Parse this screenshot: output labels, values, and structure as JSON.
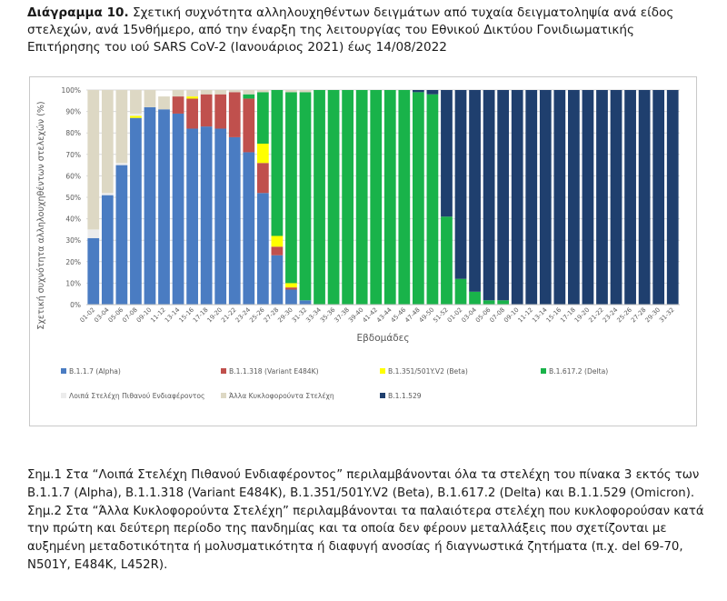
{
  "caption": {
    "label": "Διάγραμμα 10.",
    "text": " Σχετική συχνότητα αλληλουχηθέντων δειγμάτων από τυχαία δειγματοληψία ανά είδος στελεχών, ανά 15νθήμερο, από την έναρξη της λειτουργίας του Εθνικού Δικτύου Γονιδιωματικής Επιτήρησης του ιού SARS CoV-2 (Ιανουάριος 2021) έως 14/08/2022"
  },
  "notes": {
    "note1": "Σημ.1 Στα “Λοιπά Στελέχη Πιθανού Ενδιαφέροντος” περιλαμβάνονται όλα τα στελέχη του πίνακα 3 εκτός των Β.1.1.7 (Alpha), B.1.1.318  (Variant E484K), B.1.351/501Y.V2 (Beta), B.1.617.2 (Delta) και B.1.1.529 (Omicron).",
    "note2": "Σημ.2 Στα “Άλλα Κυκλοφορούντα Στελέχη” περιλαμβάνονται τα παλαιότερα στελέχη που κυκλοφορούσαν κατά την πρώτη και δεύτερη περίοδο της πανδημίας και τα οποία δεν φέρουν μεταλλάξεις που σχετίζονται με αυξημένη μεταδοτικότητα ή μολυσματικότητα ή διαφυγή ανοσίας ή διαγνωστικά ζητήματα (π.χ. del 69-70, N501Y, E484K, L452R)."
  },
  "colors": {
    "alpha": "#4a7cc2",
    "e484k": "#c0504d",
    "beta": "#ffff00",
    "delta": "#19b34a",
    "lpe": "#ececec",
    "other": "#ddd8c4",
    "omicron": "#1f3f6e",
    "grid": "#d9d9d9",
    "axis_text": "#595959"
  },
  "chart_data": {
    "type": "bar",
    "stacked": true,
    "xlabel": "Εβδομάδες",
    "ylabel": "Σχετική συχνότητα αλληλουχηθέντων στελεχών (%)",
    "ylim": [
      0,
      100
    ],
    "yticks": [
      "0%",
      "10%",
      "20%",
      "30%",
      "40%",
      "50%",
      "60%",
      "70%",
      "80%",
      "90%",
      "100%"
    ],
    "grid": true,
    "legend_position": "bottom",
    "categories": [
      "01-02",
      "03-04",
      "05-06",
      "07-08",
      "09-10",
      "11-12",
      "13-14",
      "15-16",
      "17-18",
      "19-20",
      "21-22",
      "23-24",
      "25-26",
      "27-28",
      "29-30",
      "31-32",
      "33-34",
      "35-36",
      "37-38",
      "39-40",
      "41-42",
      "43-44",
      "45-46",
      "47-48",
      "49-50",
      "51-52",
      "01-02",
      "03-04",
      "05-06",
      "07-08",
      "09-10",
      "11-12",
      "13-14",
      "15-16",
      "17-18",
      "19-20",
      "21-22",
      "23-24",
      "25-26",
      "27-28",
      "29-30",
      "31-32"
    ],
    "series": [
      {
        "key": "alpha",
        "name": "B.1.1.7 (Alpha)",
        "values": [
          31,
          51,
          65,
          87,
          92,
          91,
          89,
          82,
          83,
          82,
          78,
          71,
          52,
          23,
          7,
          2,
          0,
          0,
          0,
          0,
          0,
          0,
          0,
          0,
          0,
          0,
          0,
          0,
          0,
          0,
          0,
          0,
          0,
          0,
          0,
          0,
          0,
          0,
          0,
          0,
          0,
          0
        ]
      },
      {
        "key": "e484k",
        "name": "B.1.1.318 (Variant E484K)",
        "values": [
          0,
          0,
          0,
          0,
          0,
          0,
          8,
          14,
          15,
          16,
          21,
          25,
          14,
          4,
          1,
          0,
          0,
          0,
          0,
          0,
          0,
          0,
          0,
          0,
          0,
          0,
          0,
          0,
          0,
          0,
          0,
          0,
          0,
          0,
          0,
          0,
          0,
          0,
          0,
          0,
          0,
          0
        ]
      },
      {
        "key": "beta",
        "name": "B.1.351/501Y.V2 (Beta)",
        "values": [
          0,
          0,
          0,
          1,
          0,
          0,
          0,
          1,
          0,
          0,
          0,
          0,
          9,
          5,
          2,
          0,
          0,
          0,
          0,
          0,
          0,
          0,
          0,
          0,
          0,
          0,
          0,
          0,
          0,
          0,
          0,
          0,
          0,
          0,
          0,
          0,
          0,
          0,
          0,
          0,
          0,
          0
        ]
      },
      {
        "key": "delta",
        "name": "B.1.617.2 (Delta)",
        "values": [
          0,
          0,
          0,
          0,
          0,
          0,
          0,
          0,
          0,
          0,
          0,
          2,
          24,
          68,
          89,
          97,
          100,
          100,
          100,
          100,
          100,
          100,
          100,
          99,
          98,
          41,
          12,
          6,
          2,
          2,
          0,
          0,
          0,
          0,
          0,
          0,
          0,
          0,
          0,
          0,
          0,
          0
        ]
      },
      {
        "key": "lpe",
        "name": "Λοιπά Στελέχη Πιθανού Ενδιαφέροντος",
        "values": [
          4,
          1,
          1,
          1,
          0,
          0,
          0,
          0,
          0,
          0,
          0,
          0,
          0,
          0,
          0,
          0,
          0,
          0,
          0,
          0,
          0,
          0,
          0,
          0,
          0,
          0,
          0,
          0,
          0,
          0,
          0,
          0,
          0,
          0,
          0,
          0,
          0,
          0,
          0,
          0,
          0,
          0
        ]
      },
      {
        "key": "other",
        "name": "Άλλα Κυκλοφορούντα Στελέχη",
        "values": [
          65,
          48,
          34,
          11,
          8,
          6,
          3,
          3,
          2,
          2,
          1,
          2,
          1,
          0,
          1,
          1,
          0,
          0,
          0,
          0,
          0,
          0,
          0,
          0,
          0,
          0,
          0,
          0,
          0,
          0,
          0,
          0,
          0,
          0,
          0,
          0,
          0,
          0,
          0,
          0,
          0,
          0
        ]
      },
      {
        "key": "omicron",
        "name": "B.1.1.529",
        "values": [
          0,
          0,
          0,
          0,
          0,
          0,
          0,
          0,
          0,
          0,
          0,
          0,
          0,
          0,
          0,
          0,
          0,
          0,
          0,
          0,
          0,
          0,
          0,
          1,
          2,
          59,
          88,
          94,
          98,
          98,
          100,
          100,
          100,
          100,
          100,
          100,
          100,
          100,
          100,
          100,
          100,
          100
        ]
      }
    ]
  }
}
